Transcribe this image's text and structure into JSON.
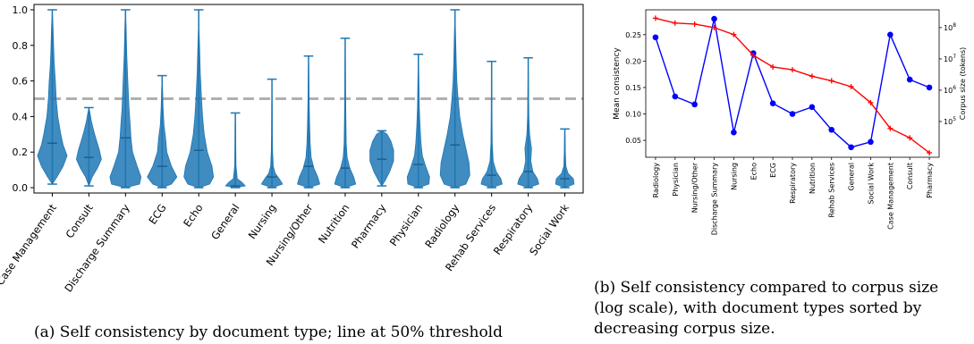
{
  "chart_data": [
    {
      "type": "violin",
      "categories": [
        "Case Management",
        "Consult",
        "Discharge Summary",
        "ECG",
        "Echo",
        "General",
        "Nursing",
        "Nursing/Other",
        "Nutrition",
        "Pharmacy",
        "Physician",
        "Radiology",
        "Rehab Services",
        "Respiratory",
        "Social Work"
      ],
      "series": [
        {
          "min": [
            0.02,
            0.01,
            0.0,
            0.0,
            0.0,
            0.0,
            0.0,
            0.0,
            0.0,
            0.01,
            0.0,
            0.0,
            0.0,
            0.0,
            0.0
          ],
          "max": [
            1.0,
            0.45,
            1.0,
            0.63,
            1.0,
            0.42,
            0.61,
            0.74,
            0.84,
            0.32,
            0.75,
            1.0,
            0.71,
            0.73,
            0.33
          ],
          "median": [
            0.25,
            0.17,
            0.28,
            0.12,
            0.21,
            0.01,
            0.06,
            0.12,
            0.11,
            0.16,
            0.13,
            0.24,
            0.07,
            0.09,
            0.05
          ],
          "width": [
            0.85,
            0.72,
            0.85,
            0.85,
            0.85,
            0.72,
            0.72,
            0.72,
            0.72,
            0.72,
            0.72,
            0.85,
            0.72,
            0.72,
            0.72
          ],
          "shape": [
            [
              [
                0,
                0.02
              ],
              [
                0.3,
                0.06
              ],
              [
                0.7,
                0.12
              ],
              [
                0.95,
                0.18
              ],
              [
                0.7,
                0.24
              ],
              [
                0.55,
                0.3
              ],
              [
                0.35,
                0.4
              ],
              [
                0.25,
                0.5
              ],
              [
                0.2,
                0.6
              ],
              [
                0.12,
                0.7
              ],
              [
                0.08,
                0.8
              ],
              [
                0.05,
                0.9
              ],
              [
                0,
                1.0
              ]
            ],
            [
              [
                0,
                0.01
              ],
              [
                0.25,
                0.06
              ],
              [
                0.65,
                0.11
              ],
              [
                0.95,
                0.16
              ],
              [
                0.8,
                0.21
              ],
              [
                0.6,
                0.26
              ],
              [
                0.4,
                0.31
              ],
              [
                0.2,
                0.37
              ],
              [
                0.08,
                0.42
              ],
              [
                0,
                0.45
              ]
            ],
            [
              [
                0,
                0.0
              ],
              [
                0.9,
                0.02
              ],
              [
                1.0,
                0.06
              ],
              [
                0.75,
                0.12
              ],
              [
                0.45,
                0.2
              ],
              [
                0.35,
                0.28
              ],
              [
                0.3,
                0.35
              ],
              [
                0.22,
                0.45
              ],
              [
                0.15,
                0.6
              ],
              [
                0.08,
                0.75
              ],
              [
                0.04,
                0.9
              ],
              [
                0,
                1.0
              ]
            ],
            [
              [
                0,
                0.0
              ],
              [
                0.6,
                0.02
              ],
              [
                0.95,
                0.06
              ],
              [
                0.6,
                0.12
              ],
              [
                0.3,
                0.2
              ],
              [
                0.22,
                0.28
              ],
              [
                0.12,
                0.35
              ],
              [
                0.06,
                0.45
              ],
              [
                0.03,
                0.55
              ],
              [
                0,
                0.63
              ]
            ],
            [
              [
                0,
                0.0
              ],
              [
                0.7,
                0.02
              ],
              [
                0.95,
                0.06
              ],
              [
                0.85,
                0.12
              ],
              [
                0.55,
                0.2
              ],
              [
                0.35,
                0.3
              ],
              [
                0.25,
                0.4
              ],
              [
                0.18,
                0.5
              ],
              [
                0.1,
                0.65
              ],
              [
                0.05,
                0.8
              ],
              [
                0.02,
                0.9
              ],
              [
                0,
                1.0
              ]
            ],
            [
              [
                0,
                0.0
              ],
              [
                0.75,
                0.01
              ],
              [
                0.5,
                0.03
              ],
              [
                0.15,
                0.05
              ],
              [
                0.05,
                0.12
              ],
              [
                0.03,
                0.25
              ],
              [
                0.02,
                0.35
              ],
              [
                0,
                0.42
              ]
            ],
            [
              [
                0,
                0.0
              ],
              [
                0.8,
                0.02
              ],
              [
                0.55,
                0.05
              ],
              [
                0.25,
                0.08
              ],
              [
                0.1,
                0.12
              ],
              [
                0.05,
                0.2
              ],
              [
                0.03,
                0.3
              ],
              [
                0.02,
                0.45
              ],
              [
                0,
                0.61
              ]
            ],
            [
              [
                0,
                0.0
              ],
              [
                0.85,
                0.02
              ],
              [
                0.7,
                0.06
              ],
              [
                0.4,
                0.11
              ],
              [
                0.2,
                0.17
              ],
              [
                0.12,
                0.25
              ],
              [
                0.08,
                0.35
              ],
              [
                0.04,
                0.5
              ],
              [
                0.02,
                0.65
              ],
              [
                0,
                0.74
              ]
            ],
            [
              [
                0,
                0.0
              ],
              [
                0.8,
                0.02
              ],
              [
                0.65,
                0.06
              ],
              [
                0.35,
                0.11
              ],
              [
                0.15,
                0.17
              ],
              [
                0.08,
                0.25
              ],
              [
                0.05,
                0.4
              ],
              [
                0.03,
                0.55
              ],
              [
                0.02,
                0.7
              ],
              [
                0,
                0.84
              ]
            ],
            [
              [
                0,
                0.01
              ],
              [
                0.25,
                0.04
              ],
              [
                0.6,
                0.09
              ],
              [
                0.9,
                0.15
              ],
              [
                0.9,
                0.21
              ],
              [
                0.7,
                0.26
              ],
              [
                0.4,
                0.3
              ],
              [
                0,
                0.32
              ]
            ],
            [
              [
                0,
                0.0
              ],
              [
                0.8,
                0.02
              ],
              [
                0.85,
                0.06
              ],
              [
                0.55,
                0.12
              ],
              [
                0.3,
                0.18
              ],
              [
                0.2,
                0.25
              ],
              [
                0.12,
                0.35
              ],
              [
                0.07,
                0.45
              ],
              [
                0.04,
                0.6
              ],
              [
                0,
                0.75
              ]
            ],
            [
              [
                0,
                0.0
              ],
              [
                0.7,
                0.02
              ],
              [
                0.95,
                0.07
              ],
              [
                0.9,
                0.14
              ],
              [
                0.75,
                0.2
              ],
              [
                0.5,
                0.3
              ],
              [
                0.3,
                0.4
              ],
              [
                0.2,
                0.5
              ],
              [
                0.12,
                0.6
              ],
              [
                0.08,
                0.7
              ],
              [
                0.04,
                0.85
              ],
              [
                0,
                1.0
              ]
            ],
            [
              [
                0,
                0.0
              ],
              [
                0.8,
                0.02
              ],
              [
                0.7,
                0.05
              ],
              [
                0.35,
                0.09
              ],
              [
                0.12,
                0.15
              ],
              [
                0.05,
                0.25
              ],
              [
                0.03,
                0.4
              ],
              [
                0.02,
                0.55
              ],
              [
                0,
                0.71
              ]
            ],
            [
              [
                0,
                0.0
              ],
              [
                0.8,
                0.02
              ],
              [
                0.7,
                0.05
              ],
              [
                0.35,
                0.09
              ],
              [
                0.2,
                0.15
              ],
              [
                0.25,
                0.22
              ],
              [
                0.1,
                0.3
              ],
              [
                0.05,
                0.4
              ],
              [
                0.03,
                0.55
              ],
              [
                0,
                0.73
              ]
            ],
            [
              [
                0,
                0.0
              ],
              [
                0.7,
                0.02
              ],
              [
                0.65,
                0.05
              ],
              [
                0.25,
                0.08
              ],
              [
                0.08,
                0.12
              ],
              [
                0.04,
                0.2
              ],
              [
                0.02,
                0.28
              ],
              [
                0,
                0.33
              ]
            ]
          ]
        }
      ],
      "ylim": [
        -0.03,
        1.03
      ],
      "yticks": [
        "0.0",
        "0.2",
        "0.4",
        "0.6",
        "0.8",
        "1.0"
      ],
      "threshold": 0.5,
      "colors": {
        "violin": "#1f77b4",
        "threshold": "#b0b0b0"
      },
      "caption": "(a) Self consistency by document type; line at 50% threshold"
    },
    {
      "type": "line",
      "categories": [
        "Radiology",
        "Physician",
        "Nursing/Other",
        "Discharge Summary",
        "Nursing",
        "Echo",
        "ECG",
        "Respiratory",
        "Nutrition",
        "Rehab Services",
        "General",
        "Social Work",
        "Case Management",
        "Consult",
        "Pharmacy"
      ],
      "series": [
        {
          "values": [
            0.245,
            0.133,
            0.118,
            0.28,
            0.065,
            0.215,
            0.12,
            0.1,
            0.113,
            0.07,
            0.037,
            0.047,
            0.25,
            0.165,
            0.15
          ],
          "color": "#0000ff",
          "marker": "circle",
          "axis": "left"
        },
        {
          "values": [
            200000000,
            140000000,
            130000000,
            100000000,
            60000000,
            13000000,
            5500000,
            4500000,
            2800000,
            2000000,
            1300000,
            400000,
            60000,
            30000,
            10000
          ],
          "color": "#ff0000",
          "marker": "plus",
          "axis": "right"
        }
      ],
      "ylabel": "Mean consistency",
      "ylabel_right": "Corpus size (tokens)",
      "ylim": [
        0.018,
        0.297
      ],
      "yticks": [
        "0.05",
        "0.10",
        "0.15",
        "0.20",
        "0.25"
      ],
      "yscale_right": "log",
      "ylim_right": [
        7200,
        370000000
      ],
      "yticks_right": [
        {
          "base": "10",
          "exp": "5"
        },
        {
          "base": "10",
          "exp": "6"
        },
        {
          "base": "10",
          "exp": "7"
        },
        {
          "base": "10",
          "exp": "8"
        }
      ],
      "caption": [
        "(b) Self consistency compared to corpus size",
        "(log scale), with document types sorted by",
        "decreasing corpus size."
      ]
    }
  ]
}
